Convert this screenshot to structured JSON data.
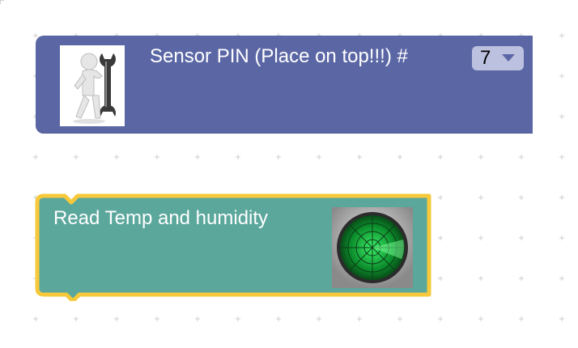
{
  "workspace": {
    "background": "#ffffff",
    "grid_color": "#d0d0d0"
  },
  "sensor_block": {
    "color": "#5b67a5",
    "label": "Sensor PIN (Place on top!!!) #",
    "pin_value": "7",
    "icon": "wrench-figure-icon"
  },
  "read_block": {
    "color": "#5ba79c",
    "highlight_color": "#f7c93a",
    "label": "Read Temp and humidity",
    "icon": "radar-icon"
  }
}
